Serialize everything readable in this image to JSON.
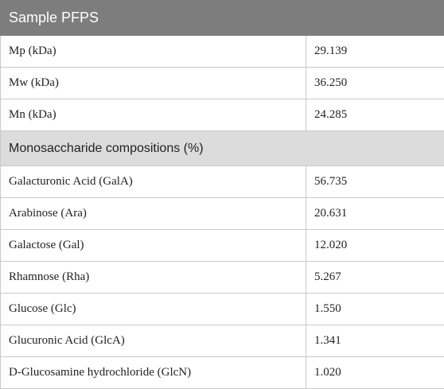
{
  "table": {
    "header": "Sample PFPS",
    "molecular_weights": [
      {
        "label": "Mp (kDa)",
        "value": "29.139"
      },
      {
        "label": "Mw (kDa)",
        "value": "36.250"
      },
      {
        "label": "Mn (kDa)",
        "value": "24.285"
      }
    ],
    "section_title": "Monosaccharide compositions (%)",
    "compositions": [
      {
        "label": "Galacturonic Acid (GalA)",
        "value": "56.735"
      },
      {
        "label": "Arabinose (Ara)",
        "value": "20.631"
      },
      {
        "label": "Galactose (Gal)",
        "value": "12.020"
      },
      {
        "label": "Rhamnose (Rha)",
        "value": "5.267"
      },
      {
        "label": "Glucose (Glc)",
        "value": "1.550"
      },
      {
        "label": "Glucuronic Acid (GlcA)",
        "value": "1.341"
      },
      {
        "label": "D-Glucosamine hydrochloride (GlcN)",
        "value": "1.020"
      }
    ]
  }
}
